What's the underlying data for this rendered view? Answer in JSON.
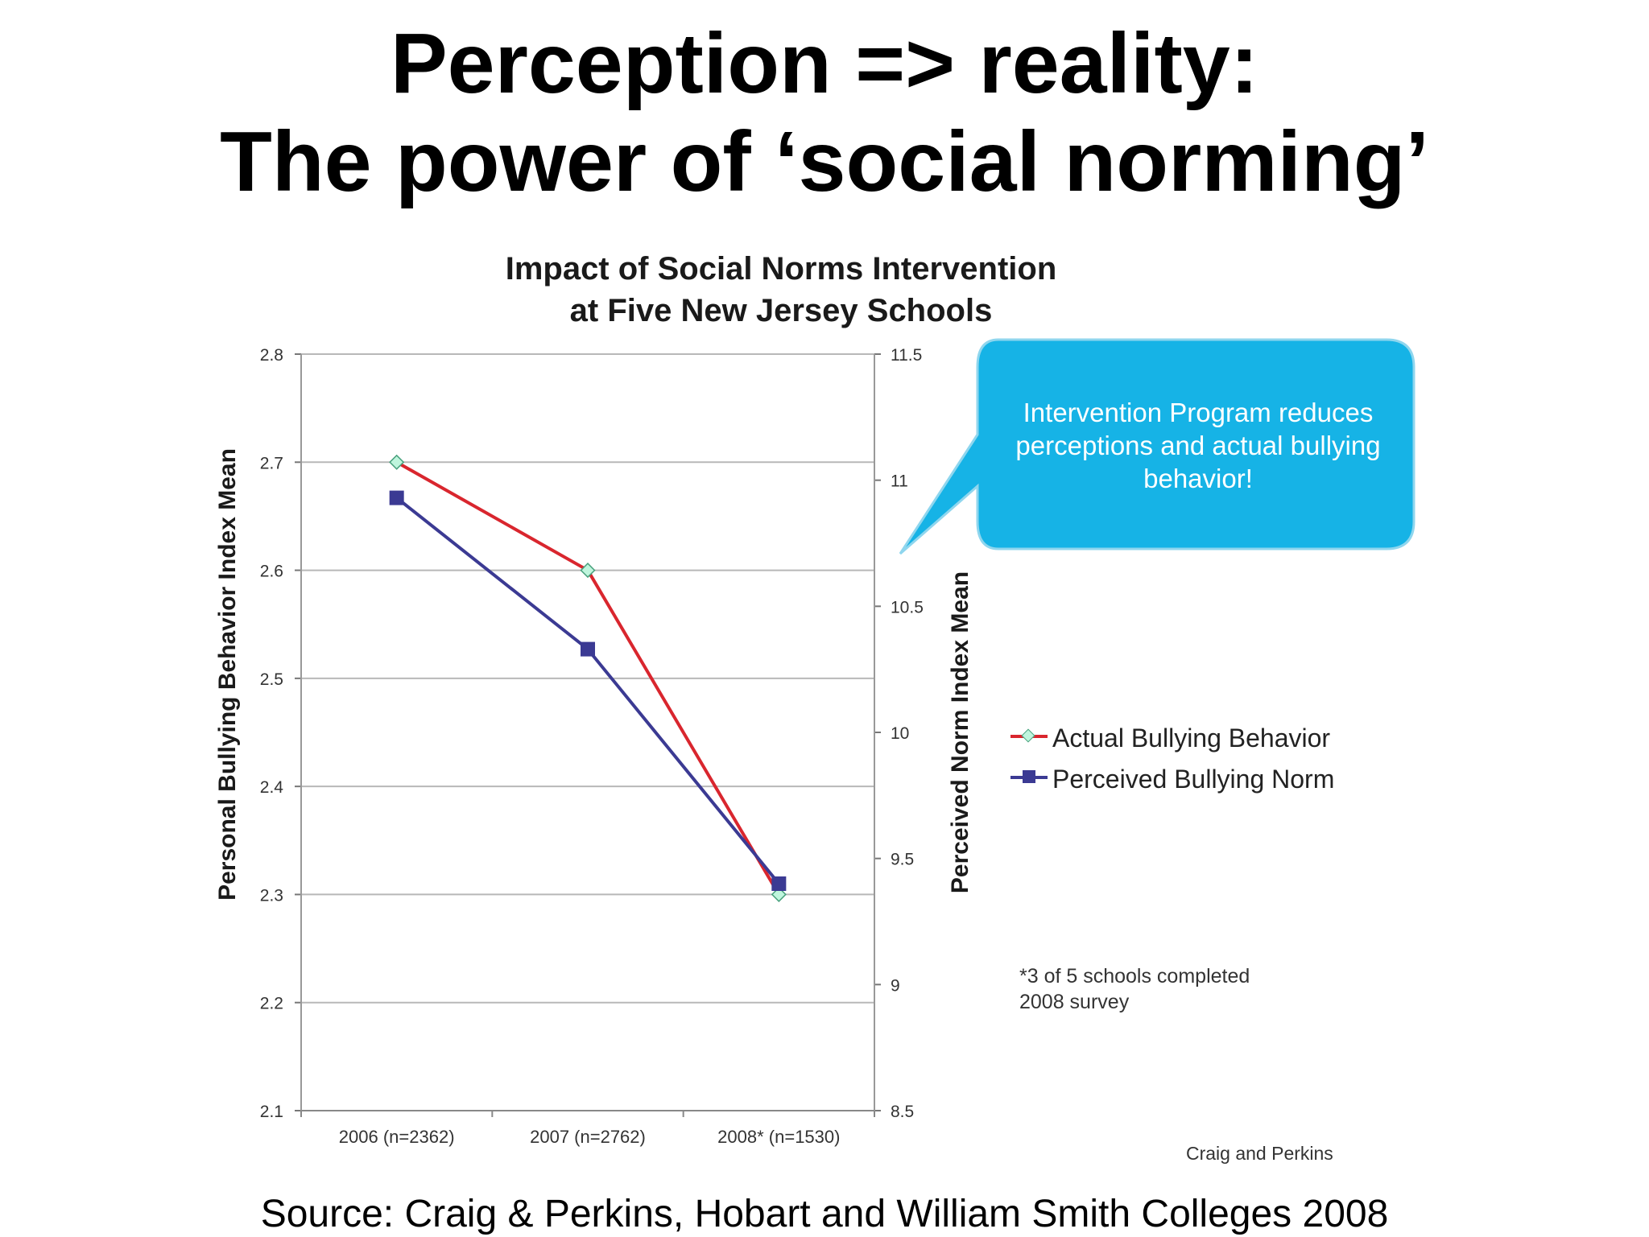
{
  "slide": {
    "title_line1": "Perception => reality:",
    "title_line2": "The power of ‘social norming’",
    "source": "Source: Craig & Perkins, Hobart and William Smith Colleges 2008"
  },
  "callout": {
    "text": "Intervention Program reduces perceptions and actual bullying behavior!",
    "color": "#16b3e6"
  },
  "chart_data": {
    "type": "line",
    "title_line1": "Impact of Social Norms Intervention",
    "title_line2": "at Five New Jersey Schools",
    "categories": [
      "2006 (n=2362)",
      "2007 (n=2762)",
      "2008* (n=1530)"
    ],
    "ylabel": "Personal Bullying Behavior Index Mean",
    "ylabel_right": "Perceived Norm Index Mean",
    "ylim": [
      2.1,
      2.8
    ],
    "yticks": [
      "2.1",
      "2.2",
      "2.3",
      "2.4",
      "2.5",
      "2.6",
      "2.7",
      "2.8"
    ],
    "ylim_right": [
      8.5,
      11.5
    ],
    "yticks_right": [
      "8.5",
      "9",
      "9.5",
      "10",
      "10.5",
      "11",
      "11.5"
    ],
    "grid": true,
    "legend_position": "right",
    "series": [
      {
        "name": "Actual  Bullying Behavior",
        "axis": "left",
        "values": [
          2.7,
          2.6,
          2.3
        ],
        "color": "#d9262e",
        "marker": "diamond",
        "marker_color": "#bff5dd"
      },
      {
        "name": "Perceived Bullying Norm",
        "axis": "right",
        "values": [
          10.93,
          10.33,
          9.4
        ],
        "color": "#3b3a93",
        "marker": "square",
        "marker_color": "#3b3a93"
      }
    ],
    "annotations": {
      "footnote_line1": "*3 of 5 schools completed",
      "footnote_line2": "2008 survey",
      "credit": "Craig and Perkins"
    }
  }
}
